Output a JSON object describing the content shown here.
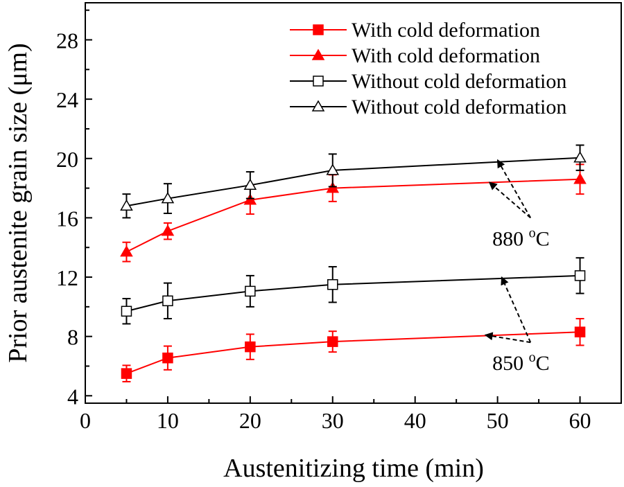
{
  "chart_data": {
    "type": "line",
    "title": "",
    "xlabel": "Austenitizing time (min)",
    "ylabel": "Prior austenite grain size (μm)",
    "xlim": [
      0,
      65
    ],
    "ylim": [
      3.5,
      30.5
    ],
    "xticks": [
      0,
      10,
      20,
      30,
      40,
      50,
      60
    ],
    "yticks": [
      4,
      8,
      12,
      16,
      20,
      24,
      28
    ],
    "grid": false,
    "legend_position": "top-right",
    "x": [
      5,
      10,
      20,
      30,
      60
    ],
    "series": [
      {
        "name": "With cold deformation",
        "temperature": "850 °C",
        "color": "#ff0000",
        "marker": "square-filled",
        "values": [
          5.5,
          6.55,
          7.3,
          7.65,
          8.3
        ],
        "errors": [
          0.55,
          0.8,
          0.85,
          0.7,
          0.9
        ]
      },
      {
        "name": "With cold deformation",
        "temperature": "880 °C",
        "color": "#ff0000",
        "marker": "triangle-filled",
        "values": [
          13.7,
          15.1,
          17.2,
          18.0,
          18.6
        ],
        "errors": [
          0.65,
          0.55,
          0.95,
          0.9,
          1.0
        ]
      },
      {
        "name": "Without cold deformation",
        "temperature": "850 °C",
        "color": "#000000",
        "marker": "square-open",
        "values": [
          9.7,
          10.4,
          11.05,
          11.5,
          12.1
        ],
        "errors": [
          0.85,
          1.2,
          1.05,
          1.2,
          1.2
        ]
      },
      {
        "name": "Without cold deformation",
        "temperature": "880 °C",
        "color": "#000000",
        "marker": "triangle-open",
        "values": [
          16.8,
          17.3,
          18.2,
          19.2,
          20.05
        ],
        "errors": [
          0.8,
          1.0,
          0.9,
          1.1,
          0.85
        ]
      }
    ],
    "annotations": [
      {
        "text": "880 °C",
        "label_main": "880 ",
        "sup": "o",
        "unit": "C",
        "targets": [
          {
            "x": 50,
            "y": 19.9
          },
          {
            "x": 49,
            "y": 18.4
          }
        ],
        "anchor": {
          "x": 54,
          "y": 16.0
        }
      },
      {
        "text": "850 °C",
        "label_main": "850 ",
        "sup": "o",
        "unit": "C",
        "targets": [
          {
            "x": 50.5,
            "y": 12.0
          },
          {
            "x": 48.5,
            "y": 8.1
          }
        ],
        "anchor": {
          "x": 54,
          "y": 7.6
        }
      }
    ]
  }
}
